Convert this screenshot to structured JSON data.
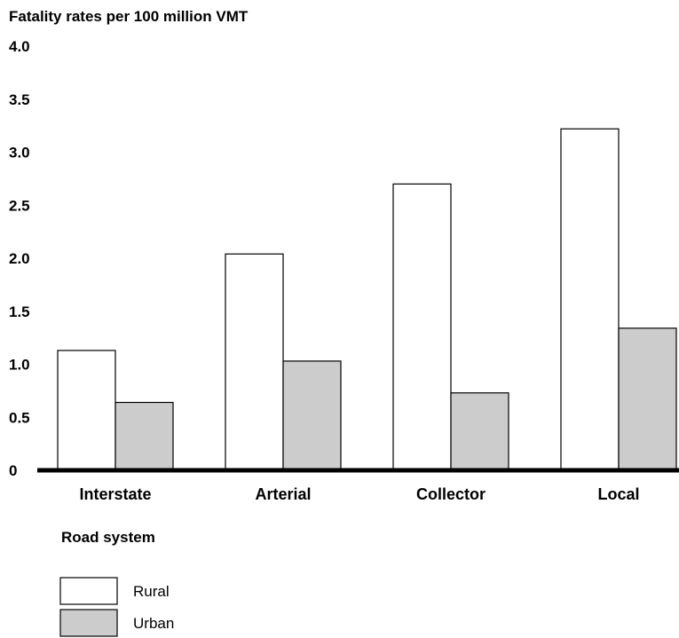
{
  "chart_data": {
    "type": "bar",
    "title": "",
    "ylabel": "Fatality rates per 100 million VMT",
    "xlabel": "Road system",
    "categories": [
      "Interstate",
      "Arterial",
      "Collector",
      "Local"
    ],
    "series": [
      {
        "name": "Rural",
        "values": [
          1.13,
          2.04,
          2.7,
          3.22
        ],
        "color": "#ffffff"
      },
      {
        "name": "Urban",
        "values": [
          0.64,
          1.03,
          0.73,
          1.34
        ],
        "color": "#cccccc"
      }
    ],
    "yticks": [
      "0",
      "0.5",
      "1.0",
      "1.5",
      "2.0",
      "2.5",
      "3.0",
      "3.5",
      "4.0"
    ],
    "ylim": [
      0,
      4.0
    ],
    "grid": false,
    "legend_position": "bottom-left"
  }
}
